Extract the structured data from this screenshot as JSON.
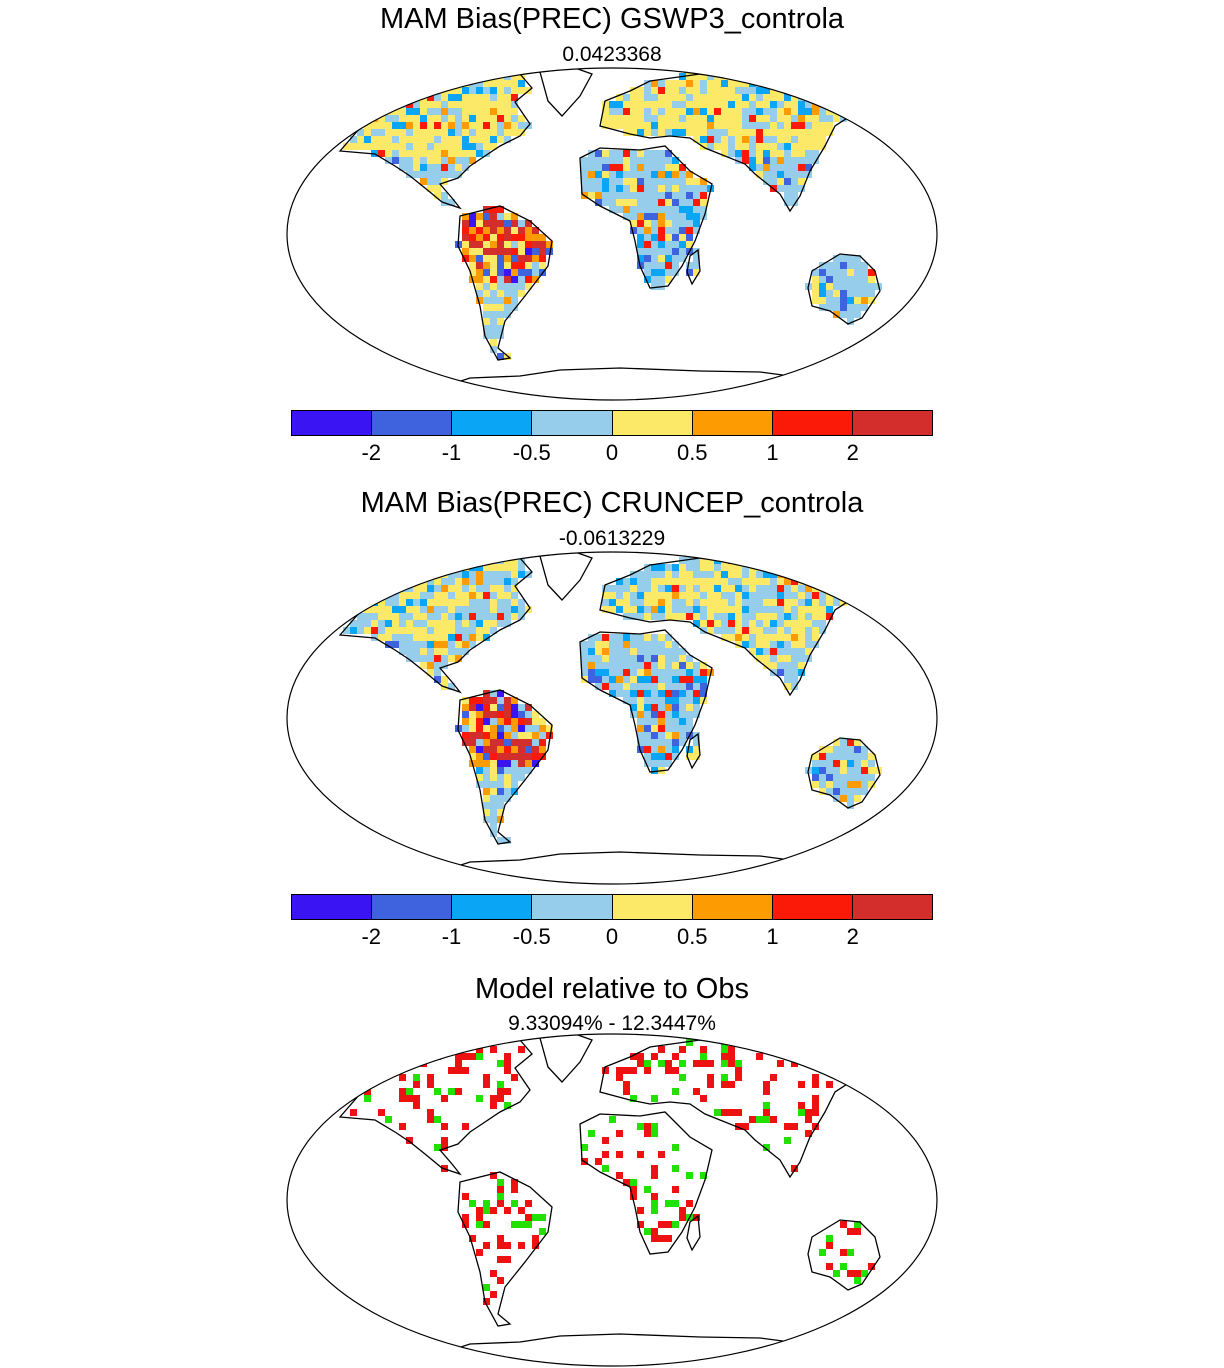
{
  "panels": [
    {
      "title": "MAM Bias(PREC) GSWP3_controla",
      "subtitle": "0.0423368"
    },
    {
      "title": "MAM Bias(PREC) CRUNCEP_controla",
      "subtitle": "-0.0613229"
    },
    {
      "title": "Model relative to Obs",
      "subtitle": "9.33094% - 12.3447%"
    }
  ],
  "colorbar": {
    "colors": [
      "#3a14f2",
      "#3f63de",
      "#0aa6f5",
      "#96cdea",
      "#fde968",
      "#fd9b02",
      "#fb1a07",
      "#d42e2c"
    ],
    "labels": [
      "-2",
      "-1",
      "-0.5",
      "0",
      "0.5",
      "1",
      "2"
    ]
  },
  "relative_colors": {
    "better": "#22e000",
    "worse": "#ee1111"
  }
}
